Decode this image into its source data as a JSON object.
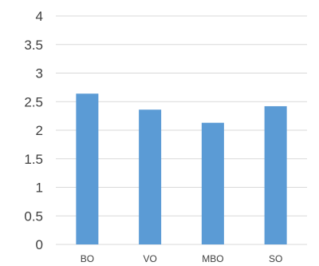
{
  "chart_data": {
    "type": "bar",
    "title": "",
    "xlabel": "",
    "ylabel": "",
    "categories": [
      "BO",
      "VO",
      "MBO",
      "SO"
    ],
    "values": [
      2.64,
      2.36,
      2.13,
      2.42
    ],
    "ylim": [
      0,
      4
    ],
    "yticks": [
      "0",
      "0.5",
      "1",
      "1.5",
      "2",
      "2.5",
      "3",
      "3.5",
      "4"
    ],
    "grid": true,
    "legend": "none",
    "bar_color": "#5B9BD5",
    "grid_color": "#D9D9D9",
    "text_color": "#404040"
  }
}
